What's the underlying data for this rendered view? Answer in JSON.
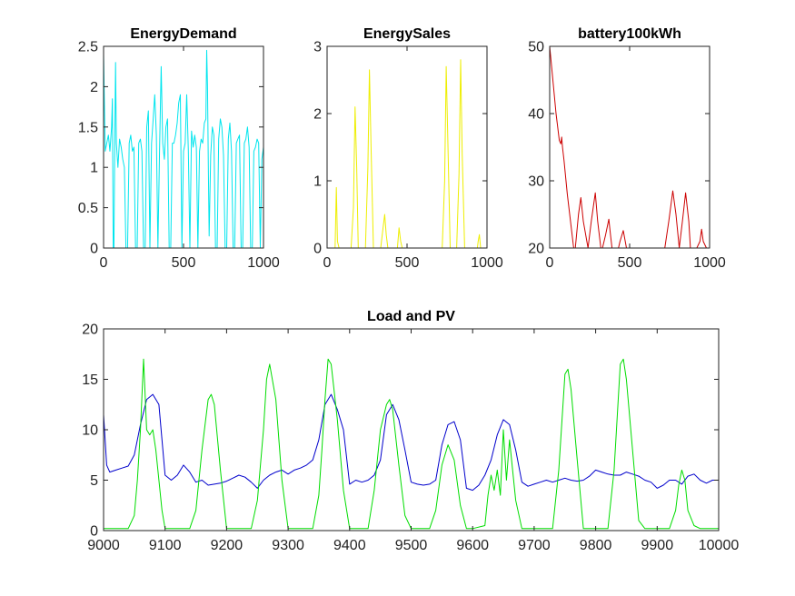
{
  "chart_data": [
    {
      "type": "line",
      "title": "EnergyDemand",
      "xlim": [
        0,
        1000
      ],
      "ylim": [
        0,
        2.5
      ],
      "xticks": [
        0,
        500,
        1000
      ],
      "yticks": [
        0,
        0.5,
        1,
        1.5,
        2,
        2.5
      ],
      "xtick_labels": [
        "0",
        "500",
        "1000"
      ],
      "ytick_labels": [
        "0",
        "0.5",
        "1",
        "1.5",
        "2",
        "2.5"
      ],
      "grid": false,
      "series": [
        {
          "color": "#00e5ee",
          "x": [
            0,
            10,
            20,
            30,
            40,
            50,
            55,
            60,
            65,
            70,
            75,
            80,
            90,
            100,
            110,
            120,
            130,
            140,
            150,
            160,
            170,
            180,
            190,
            200,
            210,
            220,
            230,
            240,
            250,
            260,
            270,
            280,
            290,
            300,
            310,
            320,
            330,
            340,
            350,
            360,
            370,
            380,
            390,
            400,
            410,
            420,
            430,
            440,
            450,
            460,
            470,
            480,
            490,
            500,
            510,
            520,
            530,
            540,
            550,
            560,
            570,
            580,
            590,
            600,
            610,
            620,
            630,
            640,
            645,
            650,
            655,
            660,
            670,
            680,
            690,
            700,
            710,
            720,
            730,
            740,
            750,
            760,
            770,
            780,
            790,
            800,
            810,
            820,
            830,
            840,
            850,
            860,
            870,
            880,
            890,
            900,
            910,
            920,
            930,
            940,
            950,
            960,
            970,
            980,
            990,
            1000
          ],
          "y": [
            2.4,
            1.2,
            1.3,
            1.4,
            1.2,
            1.5,
            1.85,
            0.0,
            0.0,
            1.3,
            2.3,
            1.3,
            1.0,
            1.35,
            1.25,
            1.1,
            1.0,
            0.0,
            0.0,
            1.3,
            1.4,
            1.2,
            1.25,
            0.0,
            0.0,
            1.3,
            1.35,
            1.2,
            0.0,
            0.0,
            1.5,
            1.7,
            0.0,
            1.3,
            1.6,
            1.9,
            1.4,
            0.0,
            1.2,
            2.25,
            1.3,
            1.1,
            1.5,
            1.6,
            0.0,
            0.0,
            1.3,
            1.3,
            1.4,
            1.55,
            1.8,
            1.9,
            0.0,
            1.2,
            1.3,
            1.9,
            1.2,
            0.0,
            1.45,
            1.25,
            1.4,
            1.25,
            0.0,
            1.2,
            1.35,
            1.3,
            1.55,
            1.6,
            2.45,
            2.0,
            1.0,
            0.15,
            1.15,
            1.5,
            1.4,
            0.0,
            0.0,
            1.35,
            1.6,
            1.5,
            1.15,
            0.0,
            0.0,
            1.35,
            1.55,
            1.2,
            0.0,
            0.0,
            1.3,
            1.35,
            1.4,
            0.0,
            0.0,
            1.3,
            1.35,
            1.5,
            1.25,
            0.0,
            0.0,
            1.2,
            1.25,
            1.35,
            1.3,
            0.0,
            1.1,
            1.25
          ]
        }
      ]
    },
    {
      "type": "line",
      "title": "EnergySales",
      "xlim": [
        0,
        1000
      ],
      "ylim": [
        0,
        3
      ],
      "xticks": [
        0,
        500,
        1000
      ],
      "yticks": [
        0,
        1,
        2,
        3
      ],
      "xtick_labels": [
        "0",
        "500",
        "1000"
      ],
      "ytick_labels": [
        "0",
        "1",
        "2",
        "3"
      ],
      "grid": false,
      "series": [
        {
          "color": "#eeee00",
          "x": [
            0,
            50,
            58,
            65,
            75,
            150,
            165,
            175,
            185,
            195,
            240,
            255,
            265,
            275,
            290,
            335,
            350,
            360,
            370,
            380,
            440,
            450,
            460,
            470,
            720,
            735,
            745,
            755,
            770,
            810,
            825,
            835,
            845,
            860,
            940,
            945,
            952,
            960,
            1000
          ],
          "y": [
            0,
            0,
            0.9,
            0.1,
            0,
            0,
            0.6,
            2.1,
            1.2,
            0,
            0,
            1.2,
            2.65,
            1.5,
            0,
            0,
            0.3,
            0.5,
            0.2,
            0,
            0,
            0.3,
            0.1,
            0,
            0,
            1.0,
            2.7,
            1.6,
            0,
            0,
            1.1,
            2.8,
            1.4,
            0,
            0,
            0.1,
            0.2,
            0,
            0
          ]
        }
      ]
    },
    {
      "type": "line",
      "title": "battery100kWh",
      "xlim": [
        0,
        1000
      ],
      "ylim": [
        20,
        50
      ],
      "xticks": [
        0,
        500,
        1000
      ],
      "yticks": [
        20,
        30,
        40,
        50
      ],
      "xtick_labels": [
        "0",
        "500",
        "1000"
      ],
      "ytick_labels": [
        "20",
        "30",
        "40",
        "50"
      ],
      "grid": false,
      "series": [
        {
          "color": "#cc0000",
          "x": [
            0,
            20,
            40,
            60,
            70,
            75,
            80,
            90,
            110,
            130,
            150,
            160,
            180,
            195,
            210,
            240,
            260,
            285,
            300,
            320,
            330,
            350,
            370,
            380,
            390,
            410,
            430,
            440,
            460,
            480,
            490,
            500,
            520,
            600,
            720,
            745,
            770,
            790,
            810,
            830,
            850,
            870,
            880,
            890,
            900,
            920,
            940,
            950,
            960,
            980,
            1000
          ],
          "y": [
            50,
            45,
            40,
            36,
            35.5,
            36.5,
            35,
            33,
            28,
            24,
            20,
            20,
            25,
            27.5,
            24,
            20,
            24,
            28.2,
            24,
            20,
            20,
            22,
            24.3,
            22,
            20,
            20,
            20,
            21,
            22.6,
            20,
            20,
            20,
            20,
            20,
            20,
            24,
            28.5,
            25,
            20,
            24,
            28.2,
            24,
            20,
            20,
            20,
            20,
            21,
            22.8,
            21,
            20,
            20
          ]
        }
      ]
    },
    {
      "type": "line",
      "title": "Load and PV",
      "xlim": [
        9000,
        10000
      ],
      "ylim": [
        0,
        20
      ],
      "xticks": [
        9000,
        9100,
        9200,
        9300,
        9400,
        9500,
        9600,
        9700,
        9800,
        9900,
        10000
      ],
      "yticks": [
        0,
        5,
        10,
        15,
        20
      ],
      "xtick_labels": [
        "9000",
        "9100",
        "9200",
        "9300",
        "9400",
        "9500",
        "9600",
        "9700",
        "9800",
        "9900",
        "10000"
      ],
      "ytick_labels": [
        "0",
        "5",
        "10",
        "15",
        "20"
      ],
      "grid": false,
      "series": [
        {
          "color": "#0000cc",
          "x": [
            9000,
            9005,
            9010,
            9020,
            9030,
            9040,
            9050,
            9060,
            9070,
            9080,
            9090,
            9100,
            9110,
            9120,
            9130,
            9140,
            9150,
            9160,
            9170,
            9180,
            9190,
            9200,
            9210,
            9220,
            9230,
            9240,
            9250,
            9260,
            9270,
            9280,
            9290,
            9300,
            9310,
            9320,
            9330,
            9340,
            9350,
            9360,
            9370,
            9380,
            9390,
            9400,
            9410,
            9420,
            9430,
            9440,
            9450,
            9460,
            9470,
            9480,
            9490,
            9500,
            9510,
            9520,
            9530,
            9540,
            9550,
            9560,
            9570,
            9580,
            9590,
            9600,
            9610,
            9620,
            9630,
            9640,
            9650,
            9660,
            9670,
            9680,
            9690,
            9700,
            9710,
            9720,
            9730,
            9740,
            9750,
            9760,
            9770,
            9780,
            9790,
            9800,
            9810,
            9820,
            9830,
            9840,
            9850,
            9860,
            9870,
            9880,
            9890,
            9900,
            9910,
            9920,
            9930,
            9940,
            9950,
            9960,
            9970,
            9980,
            9990,
            10000
          ],
          "y": [
            11.5,
            6.5,
            5.8,
            6.0,
            6.2,
            6.4,
            7.5,
            10.5,
            13.0,
            13.5,
            12.5,
            5.5,
            5.0,
            5.5,
            6.5,
            5.8,
            4.8,
            5.0,
            4.5,
            4.6,
            4.7,
            4.9,
            5.2,
            5.5,
            5.3,
            4.8,
            4.2,
            5.0,
            5.5,
            5.8,
            6.0,
            5.6,
            6.0,
            6.2,
            6.5,
            7.0,
            9.0,
            12.5,
            13.5,
            12.0,
            10.0,
            4.6,
            5.0,
            4.8,
            5.0,
            5.5,
            7.0,
            11.5,
            12.5,
            11.0,
            8.0,
            4.8,
            4.6,
            4.5,
            4.6,
            5.0,
            8.5,
            10.5,
            10.8,
            9.0,
            4.2,
            4.0,
            4.5,
            5.5,
            7.0,
            9.5,
            11.0,
            10.5,
            8.0,
            4.8,
            4.4,
            4.6,
            4.8,
            5.0,
            4.8,
            5.0,
            5.2,
            5.0,
            4.9,
            5.0,
            5.4,
            6.0,
            5.8,
            5.6,
            5.5,
            5.5,
            5.8,
            5.6,
            5.4,
            5.0,
            4.8,
            4.2,
            4.5,
            5.0,
            5.0,
            4.6,
            5.4,
            5.6,
            5.0,
            4.7,
            5.0,
            5.0
          ]
        },
        {
          "color": "#00dd00",
          "x": [
            9000,
            9040,
            9050,
            9055,
            9060,
            9065,
            9070,
            9075,
            9080,
            9085,
            9090,
            9095,
            9100,
            9140,
            9150,
            9160,
            9170,
            9175,
            9180,
            9190,
            9200,
            9240,
            9250,
            9260,
            9265,
            9270,
            9280,
            9290,
            9300,
            9340,
            9350,
            9355,
            9360,
            9365,
            9370,
            9380,
            9390,
            9400,
            9430,
            9440,
            9450,
            9460,
            9465,
            9470,
            9480,
            9490,
            9500,
            9530,
            9540,
            9550,
            9560,
            9570,
            9580,
            9590,
            9600,
            9620,
            9625,
            9630,
            9635,
            9640,
            9645,
            9650,
            9655,
            9660,
            9665,
            9670,
            9680,
            9700,
            9730,
            9740,
            9750,
            9755,
            9760,
            9770,
            9780,
            9800,
            9820,
            9830,
            9840,
            9845,
            9850,
            9860,
            9870,
            9880,
            9900,
            9920,
            9930,
            9935,
            9940,
            9945,
            9950,
            9960,
            9970,
            10000
          ],
          "y": [
            0.2,
            0.2,
            1.5,
            5.0,
            10.0,
            17.0,
            10.0,
            9.5,
            10.0,
            8.0,
            5.0,
            2.0,
            0.2,
            0.2,
            2.0,
            8.0,
            13.0,
            13.5,
            12.5,
            6.0,
            0.2,
            0.2,
            3.0,
            10.0,
            15.0,
            16.5,
            13.0,
            5.0,
            0.2,
            0.2,
            3.5,
            8.0,
            13.0,
            17.0,
            16.5,
            11.0,
            4.0,
            0.2,
            0.2,
            4.0,
            10.0,
            12.5,
            13.0,
            12.0,
            6.5,
            1.5,
            0.2,
            0.2,
            2.0,
            6.5,
            8.5,
            7.0,
            2.5,
            0.2,
            0.2,
            0.5,
            3.5,
            5.5,
            4.0,
            6.0,
            3.5,
            10.0,
            5.0,
            9.0,
            6.0,
            3.0,
            0.2,
            0.2,
            0.2,
            6.0,
            15.5,
            16.0,
            14.0,
            7.0,
            0.2,
            0.2,
            0.2,
            6.0,
            16.5,
            17.0,
            15.0,
            8.0,
            1.0,
            0.2,
            0.2,
            0.2,
            2.0,
            4.5,
            6.0,
            5.0,
            2.0,
            0.5,
            0.2,
            0.2
          ]
        }
      ]
    }
  ]
}
